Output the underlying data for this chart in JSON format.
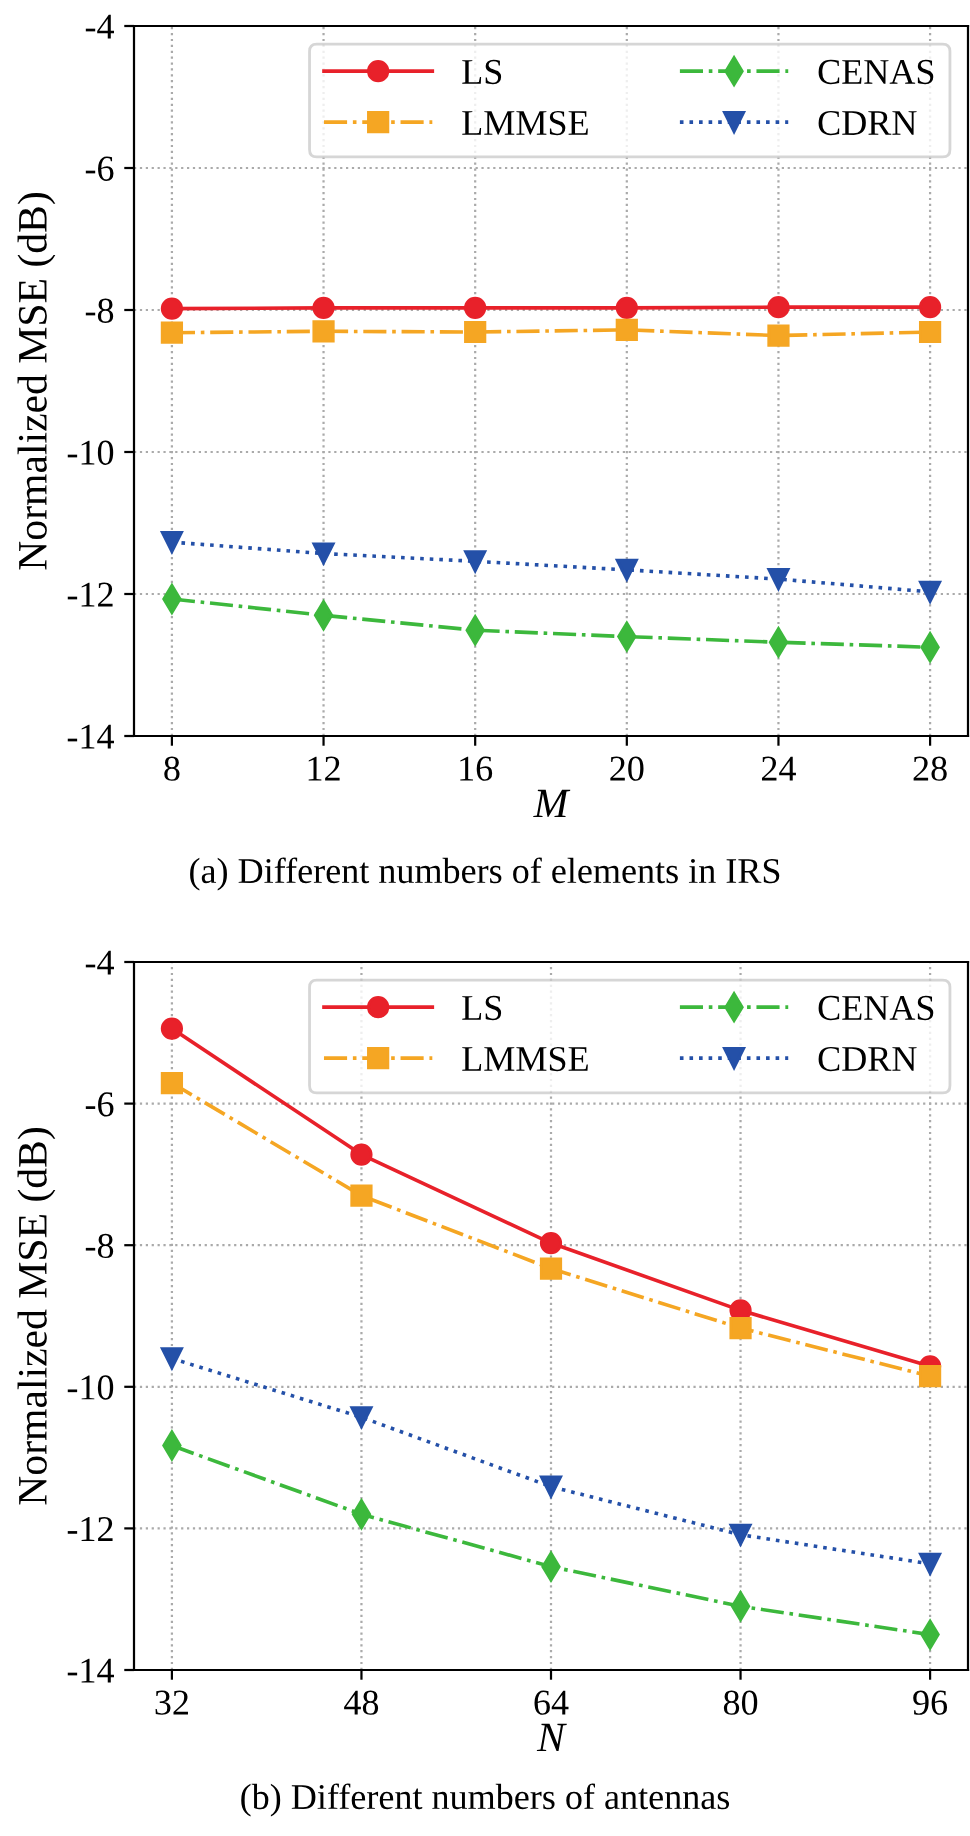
{
  "chart_data": [
    {
      "type": "line",
      "x": [
        8,
        12,
        16,
        20,
        24,
        28
      ],
      "xlabel": "M",
      "ylabel": "Normalized MSE (dB)",
      "xlim": [
        7,
        29
      ],
      "xticks": [
        8,
        12,
        16,
        20,
        24,
        28
      ],
      "ylim": [
        -14,
        -4
      ],
      "yticks": [
        -14,
        -12,
        -10,
        -8,
        -6,
        -4
      ],
      "grid": true,
      "legend": "top right",
      "annotations": [
        "(a) Different numbers of elements in IRS"
      ],
      "series": [
        {
          "name": "LS",
          "color": "#e8212a",
          "marker": "circle",
          "line_style": "solid",
          "values": [
            -7.98,
            -7.97,
            -7.97,
            -7.97,
            -7.96,
            -7.96
          ]
        },
        {
          "name": "LMMSE",
          "color": "#f5a623",
          "marker": "square",
          "line_style": "dashdot",
          "values": [
            -8.32,
            -8.3,
            -8.31,
            -8.28,
            -8.36,
            -8.31
          ]
        },
        {
          "name": "CENAS",
          "color": "#3cb83c",
          "marker": "diamond",
          "line_style": "dashdot",
          "values": [
            -12.07,
            -12.3,
            -12.51,
            -12.6,
            -12.68,
            -12.75
          ]
        },
        {
          "name": "CDRN",
          "color": "#2450a8",
          "marker": "triangle",
          "line_style": "dotted",
          "values": [
            -11.27,
            -11.43,
            -11.54,
            -11.66,
            -11.79,
            -11.97
          ]
        }
      ]
    },
    {
      "type": "line",
      "x": [
        32,
        48,
        64,
        80,
        96
      ],
      "xlabel": "N",
      "ylabel": "Normalized MSE (dB)",
      "xlim": [
        28.8,
        99.2
      ],
      "xticks": [
        32,
        48,
        64,
        80,
        96
      ],
      "ylim": [
        -14,
        -4
      ],
      "yticks": [
        -14,
        -12,
        -10,
        -8,
        -6,
        -4
      ],
      "grid": true,
      "legend": "top right",
      "annotations": [
        "(b) Different numbers of antennas"
      ],
      "series": [
        {
          "name": "LS",
          "color": "#e8212a",
          "marker": "circle",
          "line_style": "solid",
          "values": [
            -4.94,
            -6.72,
            -7.97,
            -8.92,
            -9.71
          ]
        },
        {
          "name": "LMMSE",
          "color": "#f5a623",
          "marker": "square",
          "line_style": "dashdot",
          "values": [
            -5.71,
            -7.3,
            -8.33,
            -9.17,
            -9.85
          ]
        },
        {
          "name": "CENAS",
          "color": "#3cb83c",
          "marker": "diamond",
          "line_style": "dashdot",
          "values": [
            -10.83,
            -11.8,
            -12.54,
            -13.1,
            -13.5
          ]
        },
        {
          "name": "CDRN",
          "color": "#2450a8",
          "marker": "triangle",
          "line_style": "dotted",
          "values": [
            -9.6,
            -10.43,
            -11.41,
            -12.09,
            -12.5
          ]
        }
      ]
    }
  ]
}
